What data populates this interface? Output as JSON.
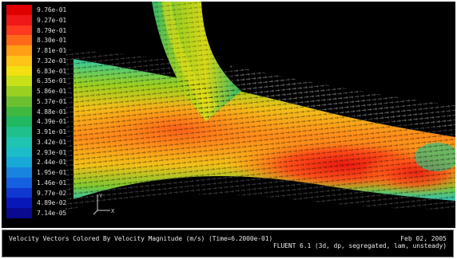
{
  "window": {
    "background": "#000000"
  },
  "legend": {
    "labels": [
      "9.76e-01",
      "9.27e-01",
      "8.79e-01",
      "8.30e-01",
      "7.81e-01",
      "7.32e-01",
      "6.83e-01",
      "6.35e-01",
      "5.86e-01",
      "5.37e-01",
      "4.88e-01",
      "4.39e-01",
      "3.91e-01",
      "3.42e-01",
      "2.93e-01",
      "2.44e-01",
      "1.95e-01",
      "1.46e-01",
      "9.77e-02",
      "4.89e-02",
      "7.14e-05"
    ],
    "colors": [
      "#e00000",
      "#f01818",
      "#ff3a20",
      "#ff6a1a",
      "#ffa016",
      "#ffc418",
      "#f2e010",
      "#c8e018",
      "#9ad020",
      "#6cc030",
      "#40b840",
      "#20b860",
      "#20c08c",
      "#20c4b0",
      "#1cbcc8",
      "#18a8d8",
      "#1884e0",
      "#1460e0",
      "#1038d0",
      "#0818b8",
      "#0a0a90"
    ]
  },
  "axes_triad": {
    "y_label": "Y",
    "x_label": "X"
  },
  "caption": {
    "title": "Velocity Vectors Colored By Velocity Magnitude (m/s)  (Time=6.2000e-01)",
    "date": "Feb 02, 2005",
    "solver": "FLUENT 6.1 (3d, dp, segregated, lam, unsteady)"
  }
}
